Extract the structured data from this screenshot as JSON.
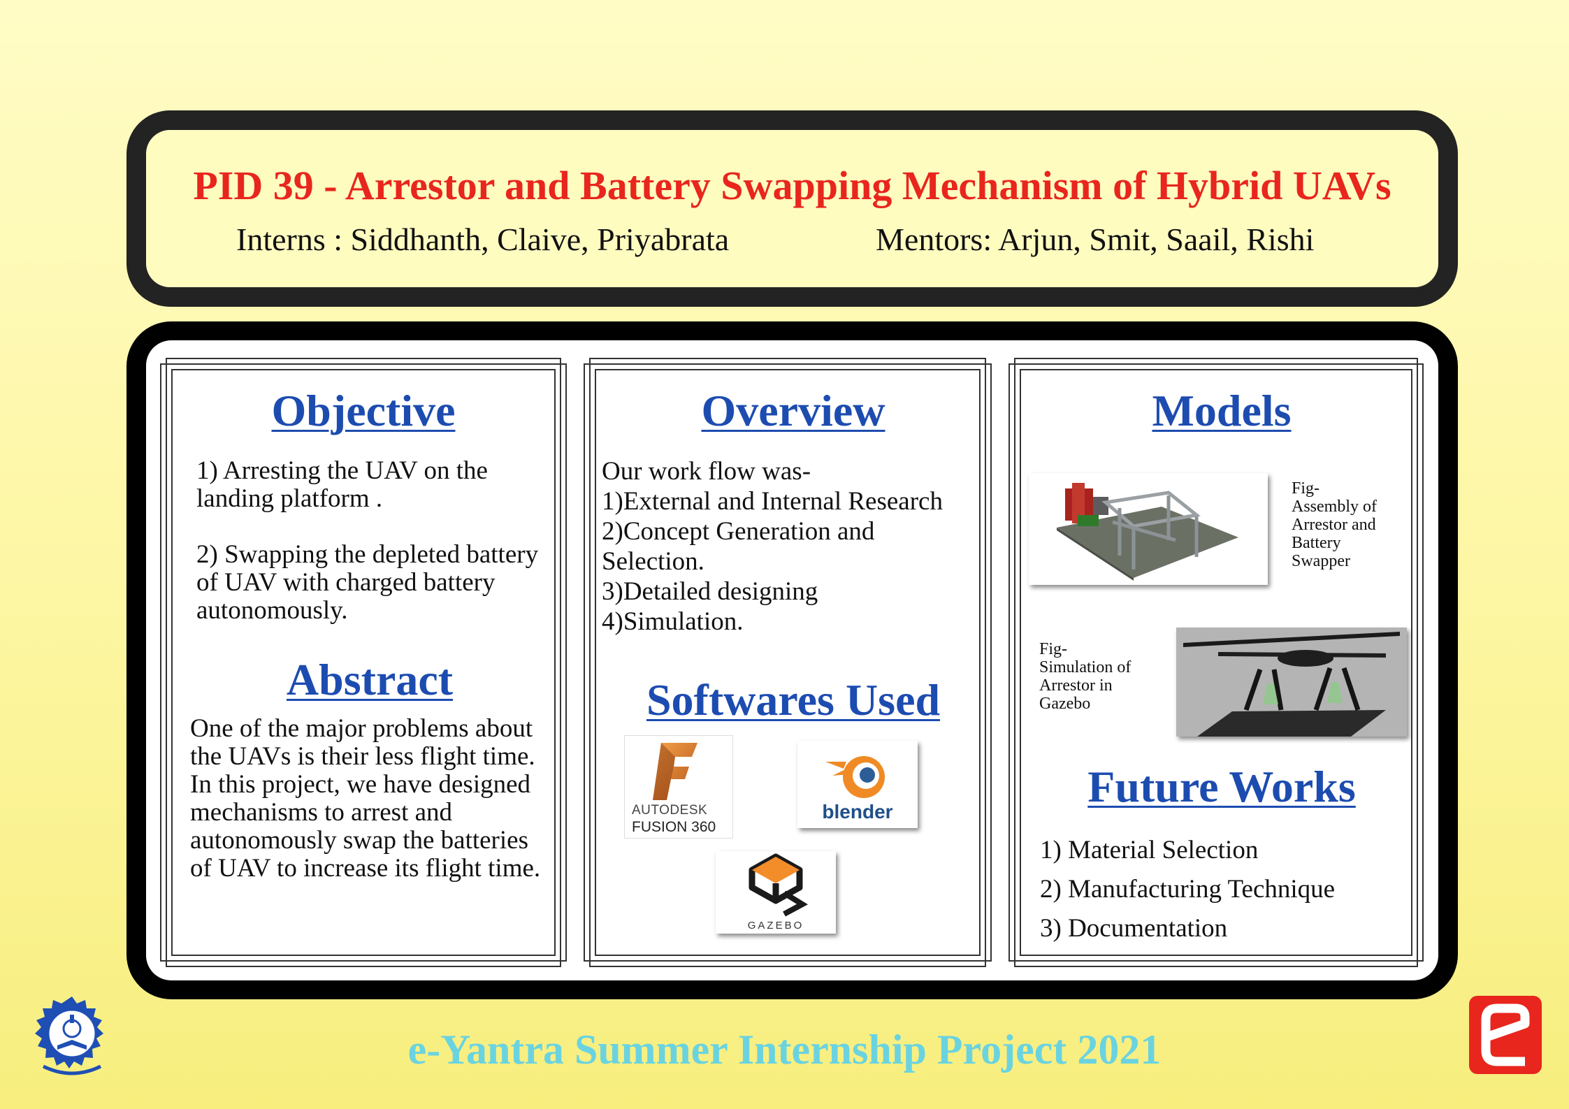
{
  "header": {
    "title": "PID 39 - Arrestor and Battery Swapping Mechanism of Hybrid UAVs",
    "interns": "Interns : Siddhanth, Claive, Priyabrata",
    "mentors": "Mentors: Arjun, Smit, Saail, Rishi"
  },
  "objective": {
    "heading": "Objective",
    "point1": "1) Arresting the UAV on the landing platform .",
    "point2": "2) Swapping the depleted battery of UAV with charged battery autonomously."
  },
  "abstract": {
    "heading": "Abstract",
    "text": "One of the major problems about the UAVs is their less flight time. In this project, we have designed mechanisms to arrest and autonomously swap the batteries of UAV to increase its flight time."
  },
  "overview": {
    "heading": "Overview",
    "lines": [
      "Our work flow was-",
      "1)External and Internal Research",
      "2)Concept Generation and",
      "Selection.",
      "3)Detailed designing",
      "4)Simulation."
    ]
  },
  "softwares": {
    "heading": "Softwares Used",
    "fusion_line1": "AUTODESK",
    "fusion_line2": "FUSION 360",
    "blender_label": "blender",
    "gazebo_label": "GAZEBO"
  },
  "models": {
    "heading": "Models",
    "caption1": [
      "Fig-",
      "Assembly of",
      "Arrestor and",
      "Battery",
      "Swapper"
    ],
    "caption2": [
      "Fig-",
      "Simulation of",
      "Arrestor in",
      "Gazebo"
    ]
  },
  "future_works": {
    "heading": "Future Works",
    "items": [
      "1) Material Selection",
      "2) Manufacturing Technique",
      "3) Documentation"
    ]
  },
  "footer": {
    "text": "e-Yantra Summer Internship Project 2021"
  },
  "colors": {
    "title": "#e8261d",
    "heading": "#1d4cb0",
    "footer": "#6ad3e0",
    "eyantra_logo": "#e8261d"
  }
}
